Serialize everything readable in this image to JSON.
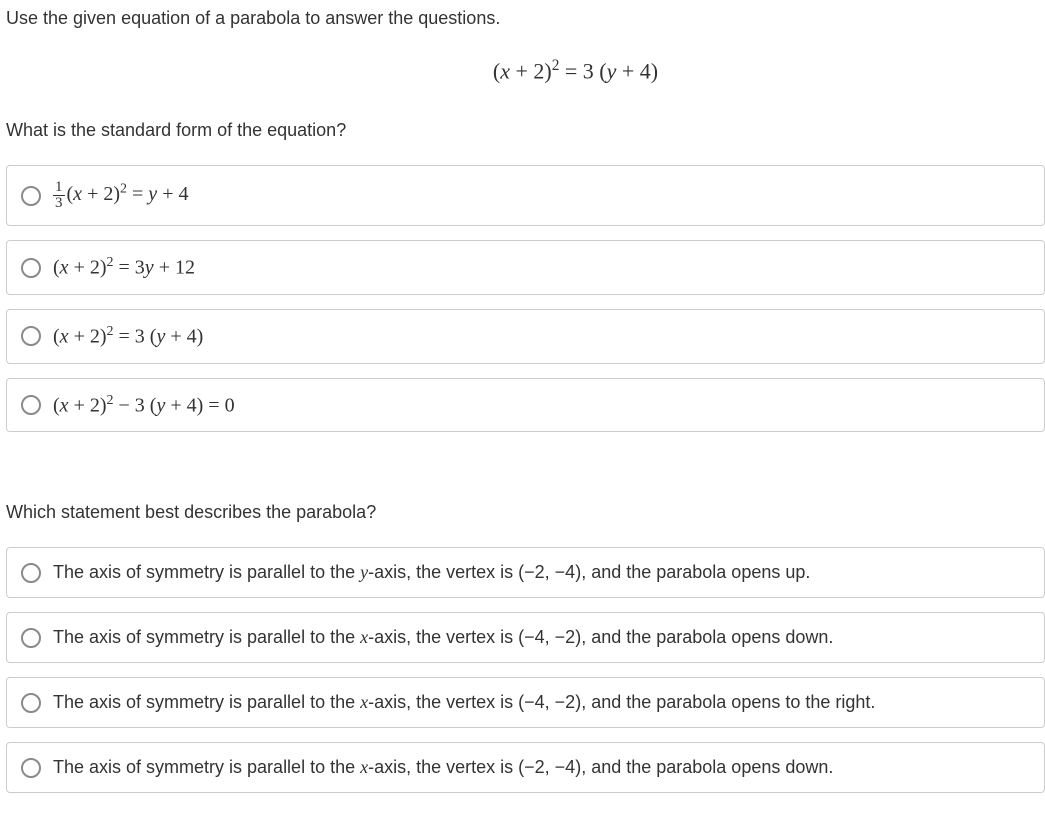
{
  "intro": "Use the given equation of a parabola to answer the questions.",
  "equation_html": "(<span class='math'>x</span> + 2)<sup>2</sup> = 3 (<span class='math'>y</span> + 4)",
  "q1": {
    "prompt": "What is the standard form of the equation?",
    "options_html": [
      "<span class='frac'><span class='num'>1</span><span class='den'>3</span></span>(<span class='math'>x</span> + 2)<sup>2</sup> = <span class='math'>y</span> + 4",
      "(<span class='math'>x</span> + 2)<sup>2</sup> = 3<span class='math'>y</span> + 12",
      "(<span class='math'>x</span> + 2)<sup>2</sup> = 3 (<span class='math'>y</span> + 4)",
      "(<span class='math'>x</span> + 2)<sup>2</sup> − 3 (<span class='math'>y</span> + 4) = 0"
    ]
  },
  "q2": {
    "prompt": "Which statement best describes the parabola?",
    "options_html": [
      "The axis of symmetry is parallel to the <span class='math'>y</span>-axis, the vertex is (−2, −4), and the parabola opens up.",
      "The axis of symmetry is parallel to the <span class='math'>x</span>-axis, the vertex is (−4, −2), and the parabola opens down.",
      "The axis of symmetry is parallel to the <span class='math'>x</span>-axis, the vertex is (−4, −2), and the parabola opens to the right.",
      "The axis of symmetry is parallel to the <span class='math'>x</span>-axis, the vertex is (−2, −4), and the parabola opens down."
    ]
  },
  "colors": {
    "text": "#333333",
    "border": "#cccccc",
    "radio_border": "#8a8a8a",
    "background": "#ffffff"
  }
}
